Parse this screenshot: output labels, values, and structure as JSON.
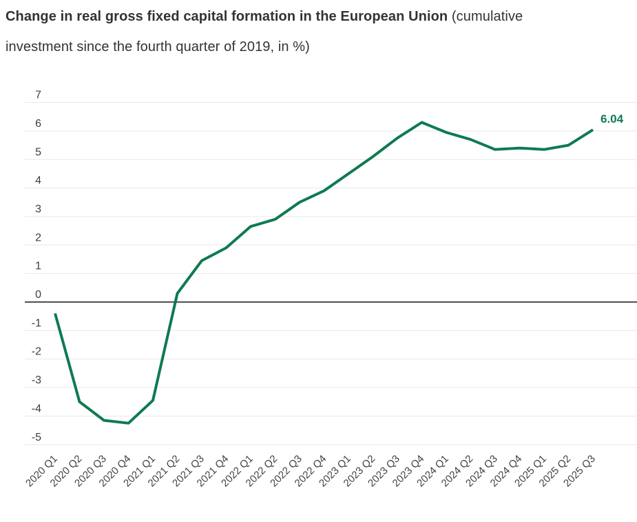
{
  "header": {
    "title_bold": "Change in real gross fixed capital formation in the European Union",
    "title_regular": " (cumulative investment since the fourth quarter of 2019, in %)"
  },
  "colors": {
    "line": "#0e7b50",
    "end_label": "#0e7b50",
    "y_axis_label": "#3d3d3d",
    "x_axis_label": "#434343",
    "gridline": "#e8e8e8",
    "zero_line": "#4f4f4f"
  },
  "chart_data": {
    "type": "line",
    "title": "Change in real gross fixed capital formation in the European Union (cumulative investment since the fourth quarter of 2019, in %)",
    "categories": [
      "2020 Q1",
      "2020 Q2",
      "2020 Q3",
      "2020 Q4",
      "2021 Q1",
      "2021 Q2",
      "2021 Q3",
      "2021 Q4",
      "2022 Q1",
      "2022 Q2",
      "2022 Q3",
      "2022 Q4",
      "2023 Q1",
      "2023 Q2",
      "2023 Q3",
      "2023 Q4",
      "2024 Q1",
      "2024 Q2",
      "2024 Q3",
      "2024 Q4",
      "2025 Q1",
      "2025 Q2",
      "2025 Q3"
    ],
    "values": [
      -0.4,
      -3.5,
      -4.15,
      -4.25,
      -3.45,
      0.3,
      1.45,
      1.9,
      2.65,
      2.9,
      3.5,
      3.9,
      4.5,
      5.1,
      5.75,
      6.3,
      5.95,
      5.7,
      5.35,
      5.4,
      5.35,
      5.5,
      6.04
    ],
    "end_label": "6.04",
    "yticks": [
      7,
      6,
      5,
      4,
      3,
      2,
      1,
      0,
      -1,
      -2,
      -3,
      -4,
      -5
    ],
    "ylim": [
      -5,
      7
    ],
    "xlabel": "",
    "ylabel": "",
    "grid": true,
    "legend": "none",
    "line_color": "#0e7b50"
  }
}
